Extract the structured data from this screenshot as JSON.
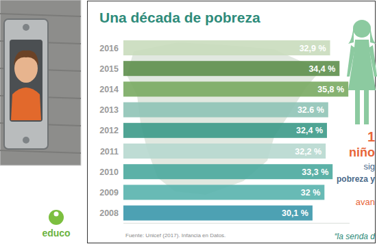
{
  "chart_data": {
    "type": "bar",
    "orientation": "horizontal",
    "title": "Una década de pobreza",
    "categories": [
      "2016",
      "2015",
      "2014",
      "2013",
      "2012",
      "2011",
      "2010",
      "2009",
      "2008"
    ],
    "values": [
      32.9,
      34.4,
      35.8,
      32.6,
      32.4,
      32.2,
      33.3,
      32,
      30.1
    ],
    "value_labels": [
      "32,9 %",
      "34,4 %",
      "35,8 %",
      "32.6 %",
      "32,4 %",
      "32,2 %",
      "33,3 %",
      "32 %",
      "30,1 %"
    ],
    "colors": [
      "#c9dcbc",
      "#5e8f4c",
      "#79aa62",
      "#8fc3b6",
      "#3c9a88",
      "#b7d8cf",
      "#4aa99d",
      "#58b2ad",
      "#3a97ab"
    ],
    "xlim": [
      0,
      36
    ],
    "tick_labels": "y",
    "data_labels": true,
    "grid": false,
    "annotations": [
      "Fuente: Unicef (2017). Infancia en Datos.",
      "1",
      "niño",
      "sig",
      "pobreza y",
      "avan",
      "“la senda d",
      "educo"
    ]
  }
}
